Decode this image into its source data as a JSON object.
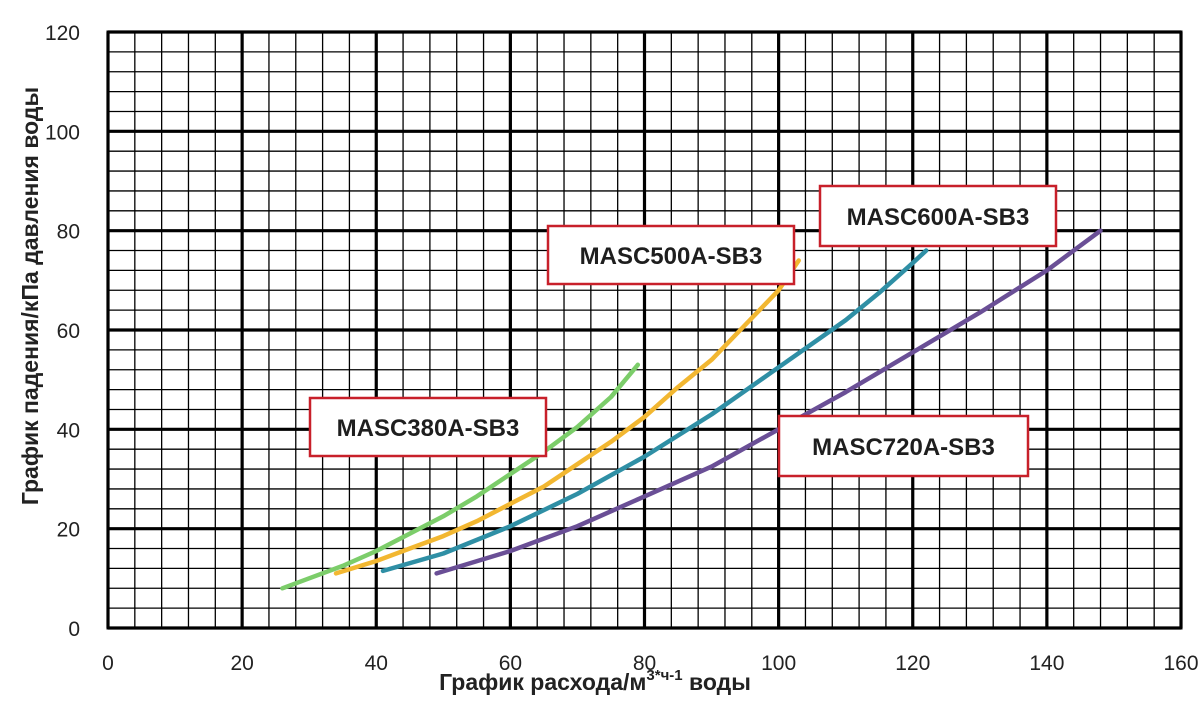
{
  "chart_data": {
    "type": "line",
    "title": "",
    "xlabel": "График расхода/м",
    "xlabel_sup": "3*ч-1",
    "xlabel_suffix": " воды",
    "ylabel": "График падения/кПа давления воды",
    "xlim": [
      0,
      160
    ],
    "ylim": [
      0,
      120
    ],
    "x_ticks": [
      0,
      20,
      40,
      60,
      80,
      100,
      120,
      140,
      160
    ],
    "y_ticks": [
      0,
      20,
      40,
      60,
      80,
      100,
      120
    ],
    "x_minor_step": 4,
    "y_minor_step": 4,
    "grid": true,
    "grid_color": "#000000",
    "callout_border_color": "#c8202a",
    "series": [
      {
        "name": "MASC380A-SB3",
        "color": "#7ccd6a",
        "x": [
          26,
          30,
          35,
          40,
          45,
          50,
          55,
          60,
          65,
          70,
          75,
          79
        ],
        "y": [
          8,
          10,
          12.5,
          15.5,
          19,
          22.5,
          26.5,
          31,
          35.5,
          40.5,
          46.5,
          53
        ]
      },
      {
        "name": "MASC500A-SB3",
        "color": "#f2b731",
        "x": [
          34,
          40,
          45,
          50,
          55,
          60,
          65,
          70,
          75,
          80,
          85,
          90,
          95,
          100,
          103
        ],
        "y": [
          11,
          13.5,
          16,
          18.5,
          21.5,
          25,
          28.5,
          33,
          37.5,
          42.5,
          48.5,
          54,
          61,
          68,
          74
        ]
      },
      {
        "name": "MASC600A-SB3",
        "color": "#2f8fa5",
        "x": [
          41,
          50,
          60,
          70,
          80,
          90,
          100,
          110,
          115,
          120,
          122
        ],
        "y": [
          11.5,
          15,
          20.5,
          27,
          34.5,
          43,
          52.5,
          62,
          67.5,
          73.5,
          76
        ]
      },
      {
        "name": "MASC720A-SB3",
        "color": "#6a4f96",
        "x": [
          49,
          60,
          70,
          80,
          90,
          100,
          110,
          120,
          130,
          140,
          148
        ],
        "y": [
          11,
          15.5,
          20.5,
          26.5,
          32.5,
          40,
          47.5,
          55.5,
          63.5,
          72,
          80
        ]
      }
    ],
    "callouts": [
      {
        "text": "MASC380A-SB3",
        "series": "MASC380A-SB3"
      },
      {
        "text": "MASC500A-SB3",
        "series": "MASC500A-SB3"
      },
      {
        "text": "MASC600A-SB3",
        "series": "MASC600A-SB3"
      },
      {
        "text": "MASC720A-SB3",
        "series": "MASC720A-SB3"
      }
    ]
  }
}
